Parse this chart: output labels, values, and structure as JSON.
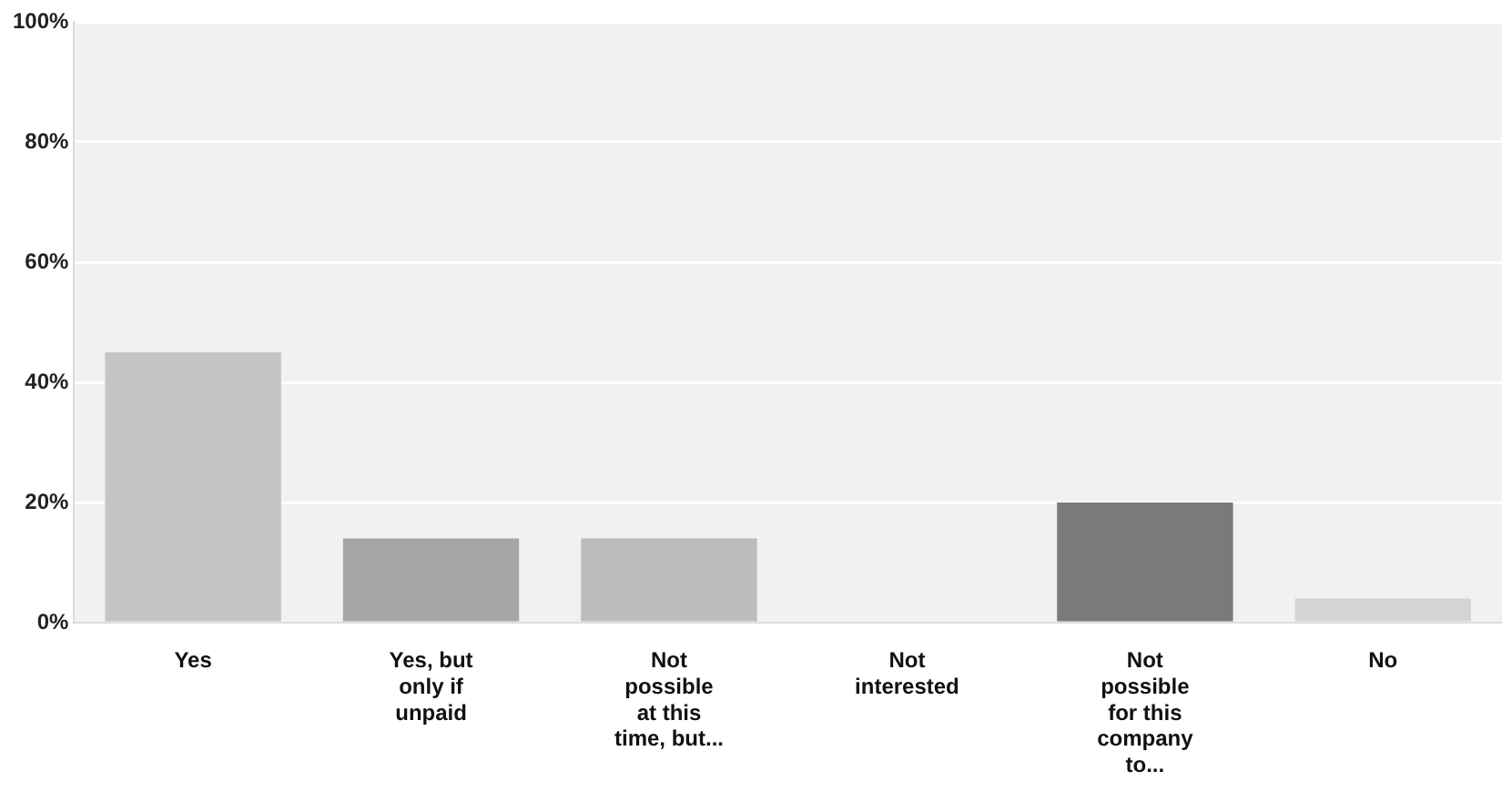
{
  "chart_data": {
    "type": "bar",
    "categories": [
      "Yes",
      "Yes, but only if unpaid",
      "Not possible at this time, but...",
      "Not interested",
      "Not possible for this company to...",
      "No"
    ],
    "values": [
      45,
      14,
      14,
      0,
      20,
      4
    ],
    "colors": [
      "#c4c4c4",
      "#a6a6a6",
      "#bcbcbc",
      "#b0b0b0",
      "#7a7a7a",
      "#d4d4d4"
    ],
    "ylim": [
      0,
      100
    ],
    "yticks": [
      {
        "value": 0,
        "label": "0%"
      },
      {
        "value": 20,
        "label": "20%"
      },
      {
        "value": 40,
        "label": "40%"
      },
      {
        "value": 60,
        "label": "60%"
      },
      {
        "value": 80,
        "label": "80%"
      },
      {
        "value": 100,
        "label": "100%"
      }
    ],
    "grid": "y"
  }
}
